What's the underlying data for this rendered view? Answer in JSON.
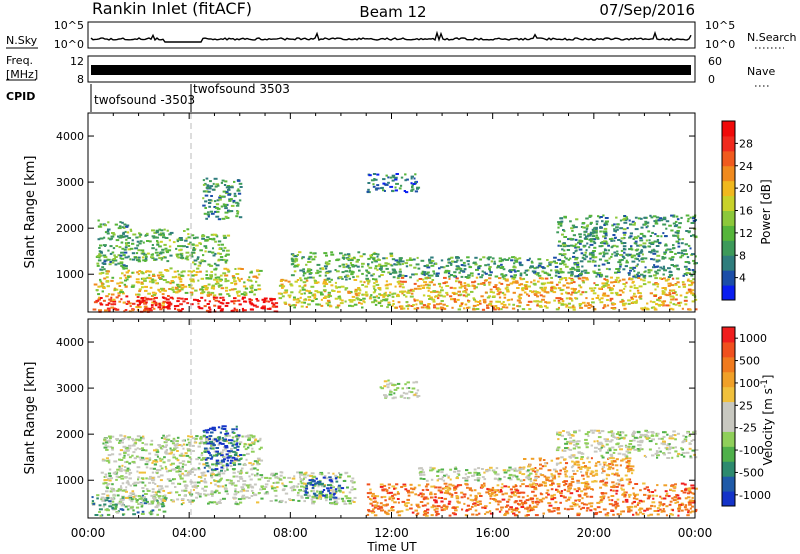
{
  "header": {
    "station": "Rankin Inlet (fitACF)",
    "beam": "Beam 12",
    "date": "07/Sep/2016"
  },
  "noise_panel": {
    "left_label": "N.Sky",
    "right_label": "N.Search",
    "ticks_left": [
      "10^5",
      "10^0"
    ],
    "ticks_right": [
      "10^5",
      "10^0"
    ]
  },
  "freq_panel": {
    "label_line1": "Freq.",
    "label_line2": "[MHz]",
    "right_label": "Nave",
    "ticks_left": [
      "12",
      "8"
    ],
    "ticks_right": [
      "60",
      "0"
    ]
  },
  "cpid": {
    "label": "CPID",
    "modes": [
      {
        "name": "twofsound -3503",
        "start_hour": 0.0
      },
      {
        "name": "twofsound 3503",
        "start_hour": 4.0
      }
    ]
  },
  "chart_data": [
    {
      "type": "heatmap",
      "panel": "power",
      "ylabel": "Slant Range [km]",
      "xlabel": "Time UT",
      "xlim_hours": [
        0,
        24
      ],
      "ylim": [
        180,
        4500
      ],
      "yticks": [
        1000,
        2000,
        3000,
        4000
      ],
      "xtick_labels": [
        "00:00",
        "04:00",
        "08:00",
        "12:00",
        "16:00",
        "20:00",
        "00:00"
      ],
      "colorbar": {
        "label": "Power [dB]",
        "ticks": [
          "4",
          "8",
          "12",
          "16",
          "20",
          "24",
          "28"
        ],
        "colors": [
          "#0a1ef0",
          "#1c4ea8",
          "#2f7d7d",
          "#3d9a5a",
          "#55b53a",
          "#8cc83a",
          "#c8d22a",
          "#f0b81e",
          "#f08a1e",
          "#f05a1e",
          "#f02a1e",
          "#f00a0a"
        ]
      },
      "regions": [
        {
          "t": [
            0.1,
            3.2
          ],
          "r": [
            200,
            560
          ],
          "level": 9
        },
        {
          "t": [
            2.0,
            7.5
          ],
          "r": [
            200,
            520
          ],
          "level": 11
        },
        {
          "t": [
            0.2,
            3.0
          ],
          "r": [
            560,
            1100
          ],
          "level": 6
        },
        {
          "t": [
            3.0,
            6.8
          ],
          "r": [
            550,
            1150
          ],
          "level": 6
        },
        {
          "t": [
            0.3,
            1.5
          ],
          "r": [
            1100,
            2200
          ],
          "level": 3
        },
        {
          "t": [
            1.5,
            4.0
          ],
          "r": [
            1300,
            2000
          ],
          "level": 4
        },
        {
          "t": [
            4.0,
            5.5
          ],
          "r": [
            1200,
            1900
          ],
          "level": 4
        },
        {
          "t": [
            4.5,
            6.0
          ],
          "r": [
            2200,
            3100
          ],
          "level": 3
        },
        {
          "t": [
            7.5,
            12.0
          ],
          "r": [
            300,
            900
          ],
          "level": 6
        },
        {
          "t": [
            8.0,
            12.0
          ],
          "r": [
            900,
            1500
          ],
          "level": 4
        },
        {
          "t": [
            12.0,
            24.0
          ],
          "r": [
            250,
            950
          ],
          "level": 7
        },
        {
          "t": [
            12.0,
            24.0
          ],
          "r": [
            950,
            1400
          ],
          "level": 3
        },
        {
          "t": [
            18.5,
            24.0
          ],
          "r": [
            1400,
            2300
          ],
          "level": 3
        },
        {
          "t": [
            11.0,
            13.0
          ],
          "r": [
            2800,
            3200
          ],
          "level": 2
        }
      ]
    },
    {
      "type": "heatmap",
      "panel": "velocity",
      "ylabel": "Slant Range [km]",
      "xlabel": "Time UT",
      "xlim_hours": [
        0,
        24
      ],
      "ylim": [
        180,
        4500
      ],
      "yticks": [
        1000,
        2000,
        3000,
        4000
      ],
      "xtick_labels": [
        "00:00",
        "04:00",
        "08:00",
        "12:00",
        "16:00",
        "20:00",
        "00:00"
      ],
      "colorbar": {
        "label": "Velocity [m s",
        "label_sup": "-1",
        "label_tail": "]",
        "ticks": [
          "1000",
          "500",
          "100",
          "25",
          "-25",
          "-100",
          "-500",
          "-1000"
        ],
        "colors": [
          "#1433c8",
          "#1f5aa8",
          "#2d8a6e",
          "#4fb04a",
          "#8fcf5a",
          "#c8c8c0",
          "#c8c8c0",
          "#f0c03c",
          "#f0a028",
          "#f07a1e",
          "#f0501e",
          "#f01e1e"
        ]
      },
      "regions": [
        {
          "t": [
            0.1,
            3.0
          ],
          "r": [
            250,
            700
          ],
          "level": 3
        },
        {
          "t": [
            0.5,
            10.5
          ],
          "r": [
            500,
            1200
          ],
          "level": 5
        },
        {
          "t": [
            0.5,
            6.8
          ],
          "r": [
            1200,
            2000
          ],
          "level": 5
        },
        {
          "t": [
            4.5,
            6.0
          ],
          "r": [
            1200,
            2200
          ],
          "level": 1
        },
        {
          "t": [
            8.5,
            10.0
          ],
          "r": [
            600,
            1100
          ],
          "level": 1
        },
        {
          "t": [
            11.0,
            24.0
          ],
          "r": [
            250,
            950
          ],
          "level": 9
        },
        {
          "t": [
            17.0,
            21.5
          ],
          "r": [
            900,
            1500
          ],
          "level": 8
        },
        {
          "t": [
            13.0,
            17.5
          ],
          "r": [
            1000,
            1300
          ],
          "level": 5
        },
        {
          "t": [
            18.5,
            24.0
          ],
          "r": [
            1500,
            2100
          ],
          "level": 5
        },
        {
          "t": [
            11.5,
            13.0
          ],
          "r": [
            2800,
            3200
          ],
          "level": 5
        }
      ]
    }
  ]
}
